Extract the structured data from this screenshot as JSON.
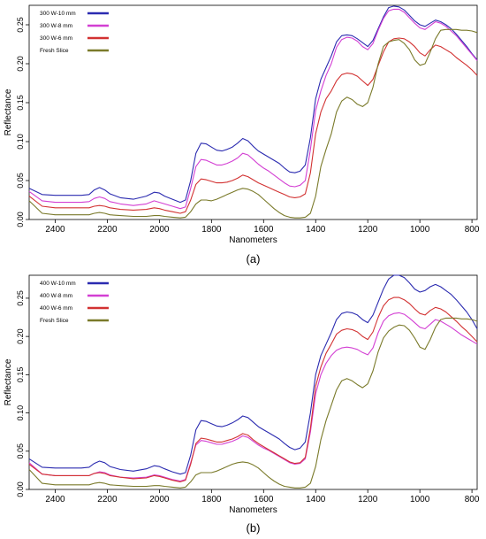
{
  "chart_data": [
    {
      "type": "line",
      "panel_label": "(a)",
      "xlabel": "Nanometers",
      "ylabel": "Reflectance",
      "x_reversed": true,
      "xlim": [
        2500,
        780
      ],
      "ylim": [
        0,
        0.275
      ],
      "x_ticks": [
        2400,
        2200,
        2000,
        1800,
        1600,
        1400,
        1200,
        1000,
        800
      ],
      "y_ticks": [
        0.0,
        0.05,
        0.1,
        0.15,
        0.2,
        0.25
      ],
      "y_tick_labels": [
        "0.00",
        "0.05",
        "0.10",
        "0.15",
        "0.20",
        "0.25"
      ],
      "legend_position": "top-left",
      "x": [
        2500,
        2450,
        2400,
        2350,
        2300,
        2270,
        2250,
        2230,
        2210,
        2190,
        2150,
        2100,
        2050,
        2020,
        2000,
        1980,
        1950,
        1920,
        1900,
        1880,
        1860,
        1840,
        1820,
        1800,
        1780,
        1760,
        1740,
        1720,
        1700,
        1680,
        1660,
        1640,
        1620,
        1600,
        1580,
        1560,
        1540,
        1520,
        1500,
        1480,
        1460,
        1440,
        1420,
        1400,
        1380,
        1360,
        1340,
        1320,
        1300,
        1280,
        1260,
        1240,
        1220,
        1200,
        1180,
        1160,
        1140,
        1120,
        1100,
        1080,
        1060,
        1040,
        1020,
        1000,
        980,
        960,
        940,
        920,
        900,
        880,
        860,
        840,
        820,
        800,
        780
      ],
      "series": [
        {
          "name": "300 W-10 mm",
          "color": "#2b2bb0",
          "values": [
            0.04,
            0.032,
            0.031,
            0.031,
            0.031,
            0.032,
            0.038,
            0.041,
            0.038,
            0.033,
            0.028,
            0.026,
            0.03,
            0.035,
            0.034,
            0.03,
            0.026,
            0.022,
            0.025,
            0.05,
            0.085,
            0.098,
            0.097,
            0.093,
            0.089,
            0.088,
            0.09,
            0.093,
            0.098,
            0.104,
            0.101,
            0.094,
            0.088,
            0.084,
            0.08,
            0.076,
            0.072,
            0.066,
            0.061,
            0.06,
            0.062,
            0.07,
            0.105,
            0.155,
            0.18,
            0.195,
            0.21,
            0.228,
            0.236,
            0.237,
            0.236,
            0.232,
            0.227,
            0.222,
            0.23,
            0.245,
            0.26,
            0.272,
            0.274,
            0.273,
            0.269,
            0.262,
            0.255,
            0.25,
            0.248,
            0.252,
            0.256,
            0.254,
            0.25,
            0.245,
            0.238,
            0.23,
            0.222,
            0.213,
            0.205
          ]
        },
        {
          "name": "300 W-8 mm",
          "color": "#d33fd3",
          "values": [
            0.036,
            0.024,
            0.022,
            0.022,
            0.022,
            0.023,
            0.027,
            0.029,
            0.027,
            0.023,
            0.02,
            0.018,
            0.02,
            0.024,
            0.022,
            0.02,
            0.017,
            0.014,
            0.016,
            0.04,
            0.068,
            0.077,
            0.076,
            0.073,
            0.07,
            0.07,
            0.072,
            0.075,
            0.079,
            0.085,
            0.083,
            0.077,
            0.071,
            0.066,
            0.062,
            0.057,
            0.052,
            0.047,
            0.043,
            0.042,
            0.044,
            0.05,
            0.09,
            0.14,
            0.165,
            0.185,
            0.2,
            0.221,
            0.231,
            0.234,
            0.233,
            0.229,
            0.222,
            0.218,
            0.226,
            0.243,
            0.258,
            0.268,
            0.27,
            0.27,
            0.266,
            0.259,
            0.252,
            0.246,
            0.244,
            0.249,
            0.254,
            0.252,
            0.248,
            0.242,
            0.236,
            0.228,
            0.22,
            0.212,
            0.204
          ]
        },
        {
          "name": "300 W-6 mm",
          "color": "#d23232",
          "values": [
            0.03,
            0.017,
            0.015,
            0.015,
            0.015,
            0.015,
            0.017,
            0.018,
            0.017,
            0.015,
            0.013,
            0.012,
            0.013,
            0.015,
            0.014,
            0.012,
            0.01,
            0.008,
            0.01,
            0.025,
            0.045,
            0.052,
            0.051,
            0.049,
            0.047,
            0.047,
            0.048,
            0.05,
            0.053,
            0.057,
            0.055,
            0.051,
            0.047,
            0.044,
            0.041,
            0.038,
            0.035,
            0.032,
            0.029,
            0.028,
            0.029,
            0.033,
            0.06,
            0.11,
            0.138,
            0.155,
            0.165,
            0.178,
            0.186,
            0.188,
            0.187,
            0.184,
            0.178,
            0.172,
            0.18,
            0.198,
            0.215,
            0.228,
            0.232,
            0.233,
            0.232,
            0.228,
            0.222,
            0.214,
            0.21,
            0.218,
            0.224,
            0.222,
            0.218,
            0.214,
            0.208,
            0.203,
            0.198,
            0.192,
            0.185
          ]
        },
        {
          "name": "Fresh Slice",
          "color": "#7a7a2a",
          "values": [
            0.024,
            0.008,
            0.006,
            0.006,
            0.006,
            0.006,
            0.008,
            0.009,
            0.008,
            0.006,
            0.005,
            0.004,
            0.004,
            0.005,
            0.005,
            0.004,
            0.003,
            0.002,
            0.003,
            0.01,
            0.02,
            0.025,
            0.025,
            0.024,
            0.026,
            0.029,
            0.032,
            0.035,
            0.038,
            0.04,
            0.039,
            0.036,
            0.032,
            0.026,
            0.02,
            0.014,
            0.009,
            0.005,
            0.003,
            0.002,
            0.002,
            0.003,
            0.008,
            0.03,
            0.068,
            0.09,
            0.11,
            0.138,
            0.152,
            0.157,
            0.154,
            0.148,
            0.145,
            0.15,
            0.17,
            0.2,
            0.222,
            0.228,
            0.23,
            0.231,
            0.226,
            0.218,
            0.205,
            0.198,
            0.2,
            0.215,
            0.232,
            0.243,
            0.244,
            0.244,
            0.244,
            0.243,
            0.243,
            0.242,
            0.24
          ]
        }
      ]
    },
    {
      "type": "line",
      "panel_label": "(b)",
      "xlabel": "Nanometers",
      "ylabel": "Reflectance",
      "x_reversed": true,
      "xlim": [
        2500,
        780
      ],
      "ylim": [
        0,
        0.28
      ],
      "x_ticks": [
        2400,
        2200,
        2000,
        1800,
        1600,
        1400,
        1200,
        1000,
        800
      ],
      "y_ticks": [
        0.0,
        0.05,
        0.1,
        0.15,
        0.2,
        0.25
      ],
      "y_tick_labels": [
        "0.00",
        "0.05",
        "0.10",
        "0.15",
        "0.20",
        "0.25"
      ],
      "legend_position": "top-left",
      "x": [
        2500,
        2450,
        2400,
        2350,
        2300,
        2270,
        2250,
        2230,
        2210,
        2190,
        2150,
        2100,
        2050,
        2020,
        2000,
        1980,
        1950,
        1920,
        1900,
        1880,
        1860,
        1840,
        1820,
        1800,
        1780,
        1760,
        1740,
        1720,
        1700,
        1680,
        1660,
        1640,
        1620,
        1600,
        1580,
        1560,
        1540,
        1520,
        1500,
        1480,
        1460,
        1440,
        1420,
        1400,
        1380,
        1360,
        1340,
        1320,
        1300,
        1280,
        1260,
        1240,
        1220,
        1200,
        1180,
        1160,
        1140,
        1120,
        1100,
        1080,
        1060,
        1040,
        1020,
        1000,
        980,
        960,
        940,
        920,
        900,
        880,
        860,
        840,
        820,
        800,
        780
      ],
      "series": [
        {
          "name": "400 W-10 mm",
          "color": "#2b2bb0",
          "values": [
            0.04,
            0.029,
            0.028,
            0.028,
            0.028,
            0.029,
            0.034,
            0.037,
            0.035,
            0.03,
            0.026,
            0.024,
            0.027,
            0.031,
            0.03,
            0.027,
            0.023,
            0.02,
            0.022,
            0.045,
            0.078,
            0.09,
            0.089,
            0.086,
            0.083,
            0.082,
            0.084,
            0.087,
            0.091,
            0.096,
            0.094,
            0.088,
            0.082,
            0.078,
            0.074,
            0.07,
            0.066,
            0.06,
            0.055,
            0.052,
            0.054,
            0.062,
            0.1,
            0.15,
            0.175,
            0.19,
            0.205,
            0.222,
            0.23,
            0.232,
            0.231,
            0.228,
            0.222,
            0.218,
            0.228,
            0.245,
            0.262,
            0.275,
            0.28,
            0.28,
            0.277,
            0.27,
            0.262,
            0.258,
            0.26,
            0.265,
            0.268,
            0.265,
            0.26,
            0.255,
            0.248,
            0.24,
            0.232,
            0.222,
            0.21
          ]
        },
        {
          "name": "400 W-8 mm",
          "color": "#d33fd3",
          "values": [
            0.035,
            0.02,
            0.018,
            0.018,
            0.018,
            0.018,
            0.021,
            0.023,
            0.022,
            0.019,
            0.016,
            0.015,
            0.016,
            0.019,
            0.018,
            0.016,
            0.013,
            0.011,
            0.013,
            0.035,
            0.058,
            0.064,
            0.063,
            0.061,
            0.059,
            0.059,
            0.061,
            0.063,
            0.066,
            0.07,
            0.068,
            0.063,
            0.058,
            0.054,
            0.051,
            0.047,
            0.043,
            0.039,
            0.035,
            0.033,
            0.034,
            0.04,
            0.075,
            0.125,
            0.15,
            0.165,
            0.175,
            0.182,
            0.185,
            0.186,
            0.185,
            0.183,
            0.179,
            0.176,
            0.185,
            0.205,
            0.22,
            0.227,
            0.23,
            0.231,
            0.229,
            0.224,
            0.218,
            0.212,
            0.21,
            0.216,
            0.222,
            0.22,
            0.216,
            0.212,
            0.207,
            0.202,
            0.198,
            0.194,
            0.19
          ]
        },
        {
          "name": "400 W-6 mm",
          "color": "#d23232",
          "values": [
            0.033,
            0.02,
            0.018,
            0.018,
            0.018,
            0.018,
            0.021,
            0.022,
            0.021,
            0.018,
            0.016,
            0.014,
            0.015,
            0.018,
            0.017,
            0.015,
            0.012,
            0.01,
            0.012,
            0.033,
            0.06,
            0.067,
            0.066,
            0.064,
            0.062,
            0.062,
            0.064,
            0.066,
            0.069,
            0.073,
            0.071,
            0.065,
            0.06,
            0.056,
            0.052,
            0.048,
            0.044,
            0.04,
            0.036,
            0.034,
            0.035,
            0.042,
            0.08,
            0.135,
            0.16,
            0.178,
            0.19,
            0.203,
            0.208,
            0.21,
            0.209,
            0.206,
            0.2,
            0.196,
            0.206,
            0.225,
            0.24,
            0.248,
            0.251,
            0.251,
            0.248,
            0.243,
            0.236,
            0.23,
            0.228,
            0.234,
            0.238,
            0.236,
            0.232,
            0.226,
            0.22,
            0.213,
            0.207,
            0.2,
            0.193
          ]
        },
        {
          "name": "Fresh Slice",
          "color": "#7a7a2a",
          "values": [
            0.026,
            0.008,
            0.006,
            0.006,
            0.006,
            0.006,
            0.008,
            0.009,
            0.008,
            0.006,
            0.005,
            0.004,
            0.004,
            0.005,
            0.005,
            0.004,
            0.003,
            0.002,
            0.003,
            0.01,
            0.019,
            0.022,
            0.022,
            0.022,
            0.024,
            0.027,
            0.03,
            0.033,
            0.035,
            0.036,
            0.035,
            0.032,
            0.028,
            0.022,
            0.016,
            0.011,
            0.007,
            0.004,
            0.003,
            0.002,
            0.002,
            0.003,
            0.008,
            0.03,
            0.065,
            0.09,
            0.11,
            0.13,
            0.142,
            0.145,
            0.142,
            0.137,
            0.133,
            0.138,
            0.155,
            0.18,
            0.198,
            0.207,
            0.212,
            0.215,
            0.214,
            0.208,
            0.198,
            0.186,
            0.183,
            0.196,
            0.212,
            0.222,
            0.224,
            0.224,
            0.224,
            0.223,
            0.223,
            0.222,
            0.22
          ]
        }
      ]
    }
  ]
}
